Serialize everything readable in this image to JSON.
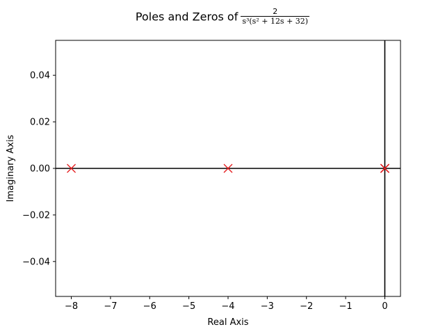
{
  "chart_data": {
    "type": "scatter",
    "title": {
      "prefix": "Poles and Zeros of",
      "numerator": "2",
      "denominator": "s³(s² + 12s + 32)"
    },
    "xlabel": "Real Axis",
    "ylabel": "Imaginary Axis",
    "xlim": [
      -8.4,
      0.4
    ],
    "ylim": [
      -0.055,
      0.055
    ],
    "xticks": [
      -8,
      -7,
      -6,
      -5,
      -4,
      -3,
      -2,
      -1,
      0
    ],
    "xtick_labels": [
      "−8",
      "−7",
      "−6",
      "−5",
      "−4",
      "−3",
      "−2",
      "−1",
      "0"
    ],
    "yticks": [
      -0.04,
      -0.02,
      0.0,
      0.02,
      0.04
    ],
    "ytick_labels": [
      "−0.04",
      "−0.02",
      "0.00",
      "0.02",
      "0.04"
    ],
    "grid": false,
    "reference_lines": {
      "horizontal_y": 0,
      "vertical_x": 0
    },
    "series": [
      {
        "marker": "x",
        "color": "#e41a1c",
        "points": [
          {
            "x": -8,
            "y": 0
          },
          {
            "x": -4,
            "y": 0
          },
          {
            "x": 0,
            "y": 0
          },
          {
            "x": 0,
            "y": 0
          },
          {
            "x": 0,
            "y": 0
          }
        ]
      }
    ]
  }
}
